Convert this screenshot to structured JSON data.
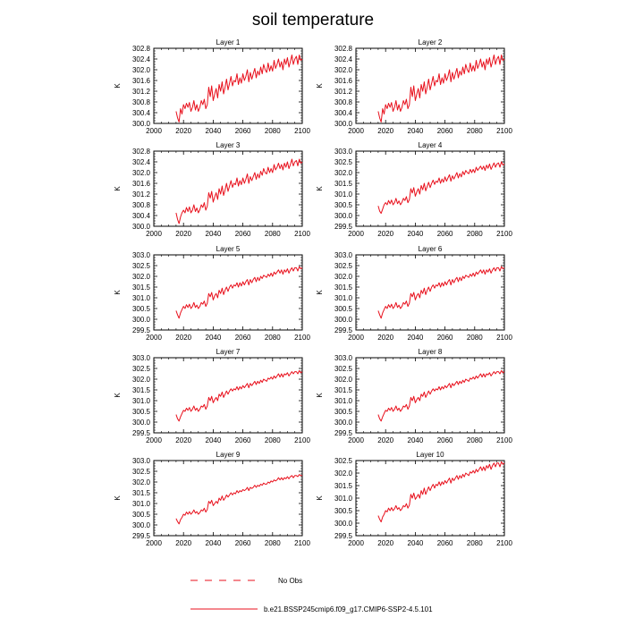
{
  "title": "soil temperature",
  "series_color": "#e8101c",
  "chart_data": [
    {
      "type": "line",
      "title": "Layer 1",
      "ylabel": "K",
      "xlim": [
        2000,
        2100
      ],
      "ylim": [
        300.0,
        302.8
      ],
      "xticks": [
        "2000",
        "2020",
        "2040",
        "2060",
        "2080",
        "2100"
      ],
      "yticks": [
        "300.0",
        "300.4",
        "300.8",
        "301.2",
        "301.6",
        "302.0",
        "302.4",
        "302.8"
      ],
      "x_start": 2015,
      "x_end": 2100,
      "values": [
        300.45,
        300.2,
        300.05,
        300.55,
        300.35,
        300.7,
        300.55,
        300.75,
        300.6,
        300.78,
        300.45,
        300.6,
        300.85,
        300.5,
        300.7,
        300.45,
        300.6,
        300.85,
        300.7,
        300.9,
        300.55,
        300.7,
        301.35,
        301.0,
        301.4,
        300.85,
        301.1,
        301.3,
        300.95,
        301.45,
        301.2,
        301.55,
        301.1,
        301.35,
        301.65,
        301.25,
        301.5,
        301.75,
        301.4,
        301.6,
        301.55,
        301.85,
        301.45,
        301.7,
        301.5,
        301.85,
        301.6,
        301.75,
        302.0,
        301.55,
        301.9,
        301.65,
        301.85,
        302.05,
        301.7,
        301.95,
        301.8,
        302.1,
        301.85,
        302.2,
        302.0,
        301.9,
        302.25,
        301.95,
        302.15,
        301.95,
        302.35,
        302.05,
        302.2,
        302.4,
        302.1,
        302.3,
        302.0,
        302.4,
        302.2,
        302.45,
        302.1,
        302.3,
        302.55,
        302.2,
        302.4,
        302.5,
        302.2,
        302.55,
        302.35,
        302.4
      ]
    },
    {
      "type": "line",
      "title": "Layer 2",
      "ylabel": "K",
      "xlim": [
        2000,
        2100
      ],
      "ylim": [
        300.0,
        302.8
      ],
      "xticks": [
        "2000",
        "2020",
        "2040",
        "2060",
        "2080",
        "2100"
      ],
      "yticks": [
        "300.0",
        "300.4",
        "300.8",
        "301.2",
        "301.6",
        "302.0",
        "302.4",
        "302.8"
      ],
      "x_start": 2015,
      "x_end": 2100,
      "values": [
        300.45,
        300.2,
        300.05,
        300.55,
        300.35,
        300.7,
        300.55,
        300.75,
        300.6,
        300.78,
        300.45,
        300.6,
        300.85,
        300.5,
        300.7,
        300.45,
        300.6,
        300.85,
        300.7,
        300.9,
        300.55,
        300.7,
        301.35,
        301.0,
        301.4,
        300.85,
        301.1,
        301.3,
        300.95,
        301.45,
        301.2,
        301.55,
        301.1,
        301.35,
        301.65,
        301.25,
        301.5,
        301.75,
        301.4,
        301.6,
        301.55,
        301.85,
        301.45,
        301.7,
        301.5,
        301.85,
        301.6,
        301.75,
        302.0,
        301.55,
        301.9,
        301.65,
        301.85,
        302.05,
        301.7,
        301.95,
        301.8,
        302.1,
        301.85,
        302.2,
        302.0,
        301.9,
        302.25,
        301.95,
        302.15,
        301.95,
        302.35,
        302.05,
        302.2,
        302.4,
        302.1,
        302.3,
        302.0,
        302.4,
        302.2,
        302.45,
        302.1,
        302.3,
        302.55,
        302.2,
        302.4,
        302.5,
        302.2,
        302.55,
        302.35,
        302.4
      ]
    },
    {
      "type": "line",
      "title": "Layer 3",
      "ylabel": "K",
      "xlim": [
        2000,
        2100
      ],
      "ylim": [
        300.0,
        302.8
      ],
      "xticks": [
        "2000",
        "2020",
        "2040",
        "2060",
        "2080",
        "2100"
      ],
      "yticks": [
        "300.0",
        "300.4",
        "300.8",
        "301.2",
        "301.6",
        "302.0",
        "302.4",
        "302.8"
      ],
      "x_start": 2015,
      "x_end": 2100,
      "values": [
        300.5,
        300.25,
        300.1,
        300.35,
        300.5,
        300.6,
        300.5,
        300.7,
        300.55,
        300.72,
        300.5,
        300.6,
        300.8,
        300.55,
        300.68,
        300.5,
        300.62,
        300.8,
        300.7,
        300.88,
        300.6,
        300.75,
        301.25,
        301.05,
        301.3,
        300.9,
        301.1,
        301.25,
        301.0,
        301.4,
        301.2,
        301.5,
        301.15,
        301.35,
        301.6,
        301.3,
        301.5,
        301.7,
        301.45,
        301.6,
        301.55,
        301.8,
        301.5,
        301.7,
        301.55,
        301.8,
        301.6,
        301.75,
        301.95,
        301.6,
        301.85,
        301.7,
        301.85,
        302.0,
        301.75,
        301.95,
        301.8,
        302.05,
        301.9,
        302.15,
        302.0,
        301.95,
        302.2,
        302.0,
        302.15,
        302.0,
        302.3,
        302.1,
        302.2,
        302.35,
        302.15,
        302.3,
        302.1,
        302.35,
        302.2,
        302.4,
        302.15,
        302.3,
        302.5,
        302.25,
        302.4,
        302.45,
        302.25,
        302.5,
        302.35,
        302.4
      ]
    },
    {
      "type": "line",
      "title": "Layer 4",
      "ylabel": "K",
      "xlim": [
        2000,
        2100
      ],
      "ylim": [
        299.5,
        303.0
      ],
      "xticks": [
        "2000",
        "2020",
        "2040",
        "2060",
        "2080",
        "2100"
      ],
      "yticks": [
        "299.5",
        "300.0",
        "300.5",
        "301.0",
        "301.5",
        "302.0",
        "302.5",
        "303.0"
      ],
      "x_start": 2015,
      "x_end": 2100,
      "values": [
        300.45,
        300.2,
        300.1,
        300.3,
        300.5,
        300.6,
        300.5,
        300.7,
        300.55,
        300.72,
        300.5,
        300.6,
        300.8,
        300.55,
        300.68,
        300.5,
        300.62,
        300.8,
        300.7,
        300.88,
        300.6,
        300.75,
        301.25,
        301.05,
        301.3,
        300.9,
        301.1,
        301.25,
        301.0,
        301.4,
        301.2,
        301.5,
        301.15,
        301.35,
        301.55,
        301.3,
        301.5,
        301.65,
        301.45,
        301.6,
        301.55,
        301.75,
        301.5,
        301.7,
        301.55,
        301.8,
        301.6,
        301.75,
        301.9,
        301.6,
        301.85,
        301.7,
        301.85,
        302.0,
        301.75,
        301.95,
        301.8,
        302.05,
        301.9,
        302.1,
        302.0,
        301.95,
        302.15,
        302.0,
        302.15,
        302.0,
        302.25,
        302.1,
        302.2,
        302.3,
        302.15,
        302.3,
        302.1,
        302.35,
        302.2,
        302.4,
        302.15,
        302.3,
        302.45,
        302.25,
        302.4,
        302.45,
        302.25,
        302.5,
        302.35,
        302.4
      ]
    },
    {
      "type": "line",
      "title": "Layer 5",
      "ylabel": "K",
      "xlim": [
        2000,
        2100
      ],
      "ylim": [
        299.5,
        303.0
      ],
      "xticks": [
        "2000",
        "2020",
        "2040",
        "2060",
        "2080",
        "2100"
      ],
      "yticks": [
        "299.5",
        "300.0",
        "300.5",
        "301.0",
        "301.5",
        "302.0",
        "302.5",
        "303.0"
      ],
      "x_start": 2015,
      "x_end": 2100,
      "values": [
        300.4,
        300.2,
        300.05,
        300.3,
        300.45,
        300.6,
        300.5,
        300.68,
        300.55,
        300.7,
        300.5,
        300.6,
        300.78,
        300.55,
        300.66,
        300.5,
        300.6,
        300.78,
        300.7,
        300.85,
        300.6,
        300.75,
        301.2,
        301.05,
        301.25,
        300.9,
        301.1,
        301.2,
        301.0,
        301.35,
        301.2,
        301.45,
        301.15,
        301.35,
        301.5,
        301.3,
        301.5,
        301.6,
        301.45,
        301.6,
        301.55,
        301.7,
        301.5,
        301.7,
        301.55,
        301.75,
        301.6,
        301.75,
        301.85,
        301.6,
        301.85,
        301.7,
        301.85,
        301.95,
        301.75,
        301.95,
        301.8,
        302.0,
        301.9,
        302.05,
        302.0,
        301.95,
        302.1,
        302.0,
        302.15,
        302.0,
        302.2,
        302.1,
        302.2,
        302.3,
        302.15,
        302.3,
        302.1,
        302.3,
        302.2,
        302.35,
        302.15,
        302.3,
        302.4,
        302.25,
        302.4,
        302.4,
        302.25,
        302.45,
        302.35,
        302.4
      ]
    },
    {
      "type": "line",
      "title": "Layer 6",
      "ylabel": "K",
      "xlim": [
        2000,
        2100
      ],
      "ylim": [
        299.5,
        303.0
      ],
      "xticks": [
        "2000",
        "2020",
        "2040",
        "2060",
        "2080",
        "2100"
      ],
      "yticks": [
        "299.5",
        "300.0",
        "300.5",
        "301.0",
        "301.5",
        "302.0",
        "302.5",
        "303.0"
      ],
      "x_start": 2015,
      "x_end": 2100,
      "values": [
        300.4,
        300.2,
        300.05,
        300.3,
        300.45,
        300.6,
        300.5,
        300.68,
        300.55,
        300.7,
        300.5,
        300.6,
        300.78,
        300.55,
        300.66,
        300.5,
        300.6,
        300.78,
        300.7,
        300.85,
        300.6,
        300.75,
        301.2,
        301.05,
        301.25,
        300.9,
        301.1,
        301.2,
        301.0,
        301.35,
        301.2,
        301.45,
        301.15,
        301.35,
        301.5,
        301.3,
        301.5,
        301.6,
        301.45,
        301.6,
        301.55,
        301.7,
        301.5,
        301.7,
        301.55,
        301.75,
        301.6,
        301.75,
        301.85,
        301.6,
        301.85,
        301.7,
        301.85,
        301.95,
        301.75,
        301.95,
        301.8,
        302.0,
        301.9,
        302.05,
        302.0,
        301.95,
        302.1,
        302.0,
        302.15,
        302.0,
        302.2,
        302.1,
        302.2,
        302.3,
        302.15,
        302.3,
        302.1,
        302.3,
        302.2,
        302.35,
        302.15,
        302.3,
        302.4,
        302.25,
        302.4,
        302.4,
        302.25,
        302.45,
        302.35,
        302.4
      ]
    },
    {
      "type": "line",
      "title": "Layer 7",
      "ylabel": "K",
      "xlim": [
        2000,
        2100
      ],
      "ylim": [
        299.5,
        303.0
      ],
      "xticks": [
        "2000",
        "2020",
        "2040",
        "2060",
        "2080",
        "2100"
      ],
      "yticks": [
        "299.5",
        "300.0",
        "300.5",
        "301.0",
        "301.5",
        "302.0",
        "302.5",
        "303.0"
      ],
      "x_start": 2015,
      "x_end": 2100,
      "values": [
        300.35,
        300.15,
        300.05,
        300.25,
        300.4,
        300.55,
        300.5,
        300.65,
        300.55,
        300.68,
        300.5,
        300.6,
        300.75,
        300.55,
        300.65,
        300.5,
        300.6,
        300.75,
        300.7,
        300.82,
        300.6,
        300.75,
        301.15,
        301.0,
        301.2,
        300.9,
        301.05,
        301.15,
        301.0,
        301.3,
        301.2,
        301.4,
        301.15,
        301.3,
        301.45,
        301.3,
        301.45,
        301.55,
        301.45,
        301.55,
        301.5,
        301.65,
        301.5,
        301.65,
        301.55,
        301.7,
        301.6,
        301.7,
        301.8,
        301.6,
        301.8,
        301.7,
        301.8,
        301.9,
        301.75,
        301.9,
        301.8,
        301.95,
        301.85,
        302.0,
        301.95,
        301.9,
        302.05,
        302.0,
        302.1,
        302.0,
        302.15,
        302.05,
        302.15,
        302.25,
        302.1,
        302.25,
        302.1,
        302.25,
        302.2,
        302.3,
        302.15,
        302.25,
        302.35,
        302.25,
        302.35,
        302.35,
        302.25,
        302.4,
        302.3,
        302.35
      ]
    },
    {
      "type": "line",
      "title": "Layer 8",
      "ylabel": "K",
      "xlim": [
        2000,
        2100
      ],
      "ylim": [
        299.5,
        303.0
      ],
      "xticks": [
        "2000",
        "2020",
        "2040",
        "2060",
        "2080",
        "2100"
      ],
      "yticks": [
        "299.5",
        "300.0",
        "300.5",
        "301.0",
        "301.5",
        "302.0",
        "302.5",
        "303.0"
      ],
      "x_start": 2015,
      "x_end": 2100,
      "values": [
        300.35,
        300.15,
        300.05,
        300.25,
        300.4,
        300.55,
        300.5,
        300.65,
        300.55,
        300.68,
        300.5,
        300.6,
        300.75,
        300.55,
        300.65,
        300.5,
        300.6,
        300.75,
        300.7,
        300.82,
        300.6,
        300.75,
        301.15,
        301.0,
        301.2,
        300.9,
        301.05,
        301.15,
        301.0,
        301.3,
        301.2,
        301.4,
        301.15,
        301.3,
        301.45,
        301.3,
        301.45,
        301.55,
        301.45,
        301.55,
        301.5,
        301.65,
        301.5,
        301.65,
        301.55,
        301.7,
        301.6,
        301.7,
        301.8,
        301.6,
        301.8,
        301.7,
        301.8,
        301.9,
        301.75,
        301.9,
        301.8,
        301.95,
        301.85,
        302.0,
        301.95,
        301.9,
        302.05,
        302.0,
        302.1,
        302.0,
        302.15,
        302.05,
        302.15,
        302.25,
        302.1,
        302.25,
        302.1,
        302.25,
        302.2,
        302.3,
        302.15,
        302.25,
        302.35,
        302.25,
        302.35,
        302.35,
        302.25,
        302.4,
        302.3,
        302.35
      ]
    },
    {
      "type": "line",
      "title": "Layer 9",
      "ylabel": "K",
      "xlim": [
        2000,
        2100
      ],
      "ylim": [
        299.5,
        303.0
      ],
      "xticks": [
        "2000",
        "2020",
        "2040",
        "2060",
        "2080",
        "2100"
      ],
      "yticks": [
        "299.5",
        "300.0",
        "300.5",
        "301.0",
        "301.5",
        "302.0",
        "302.5",
        "303.0"
      ],
      "x_start": 2015,
      "x_end": 2100,
      "values": [
        300.3,
        300.15,
        300.05,
        300.25,
        300.35,
        300.5,
        300.45,
        300.6,
        300.5,
        300.62,
        300.5,
        300.58,
        300.7,
        300.55,
        300.62,
        300.5,
        300.58,
        300.7,
        300.65,
        300.78,
        300.6,
        300.72,
        301.1,
        301.0,
        301.15,
        300.9,
        301.0,
        301.1,
        301.0,
        301.25,
        301.15,
        301.35,
        301.15,
        301.25,
        301.4,
        301.3,
        301.4,
        301.5,
        301.4,
        301.5,
        301.45,
        301.6,
        301.5,
        301.6,
        301.55,
        301.65,
        301.6,
        301.65,
        301.75,
        301.6,
        301.75,
        301.7,
        301.75,
        301.85,
        301.75,
        301.85,
        301.8,
        301.9,
        301.85,
        301.95,
        301.9,
        301.9,
        302.0,
        301.95,
        302.05,
        302.0,
        302.1,
        302.05,
        302.1,
        302.2,
        302.1,
        302.2,
        302.1,
        302.2,
        302.15,
        302.25,
        302.15,
        302.25,
        302.3,
        302.2,
        302.3,
        302.3,
        302.25,
        302.35,
        302.3,
        302.3
      ]
    },
    {
      "type": "line",
      "title": "Layer 10",
      "ylabel": "K",
      "xlim": [
        2000,
        2100
      ],
      "ylim": [
        299.5,
        302.5
      ],
      "xticks": [
        "2000",
        "2020",
        "2040",
        "2060",
        "2080",
        "2100"
      ],
      "yticks": [
        "299.5",
        "300.0",
        "300.5",
        "301.0",
        "301.5",
        "302.0",
        "302.5"
      ],
      "x_start": 2015,
      "x_end": 2100,
      "values": [
        300.3,
        300.15,
        300.05,
        300.25,
        300.35,
        300.5,
        300.45,
        300.6,
        300.5,
        300.62,
        300.5,
        300.58,
        300.7,
        300.55,
        300.62,
        300.5,
        300.58,
        300.7,
        300.65,
        300.78,
        300.6,
        300.72,
        301.15,
        301.0,
        301.2,
        300.95,
        301.05,
        301.15,
        301.0,
        301.3,
        301.15,
        301.4,
        301.15,
        301.3,
        301.45,
        301.3,
        301.45,
        301.55,
        301.4,
        301.55,
        301.5,
        301.65,
        301.5,
        301.65,
        301.55,
        301.7,
        301.6,
        301.7,
        301.8,
        301.6,
        301.8,
        301.7,
        301.8,
        301.9,
        301.75,
        301.9,
        301.8,
        301.95,
        301.85,
        302.0,
        301.95,
        301.9,
        302.05,
        302.0,
        302.1,
        302.0,
        302.15,
        302.05,
        302.15,
        302.25,
        302.1,
        302.25,
        302.1,
        302.3,
        302.2,
        302.35,
        302.15,
        302.3,
        302.4,
        302.25,
        302.4,
        302.4,
        302.25,
        302.45,
        302.35,
        302.4
      ]
    }
  ],
  "legend": {
    "obs_label": "No Obs",
    "case_label": "b.e21.BSSP245cmip6.f09_g17.CMIP6-SSP2-4.5.101"
  }
}
